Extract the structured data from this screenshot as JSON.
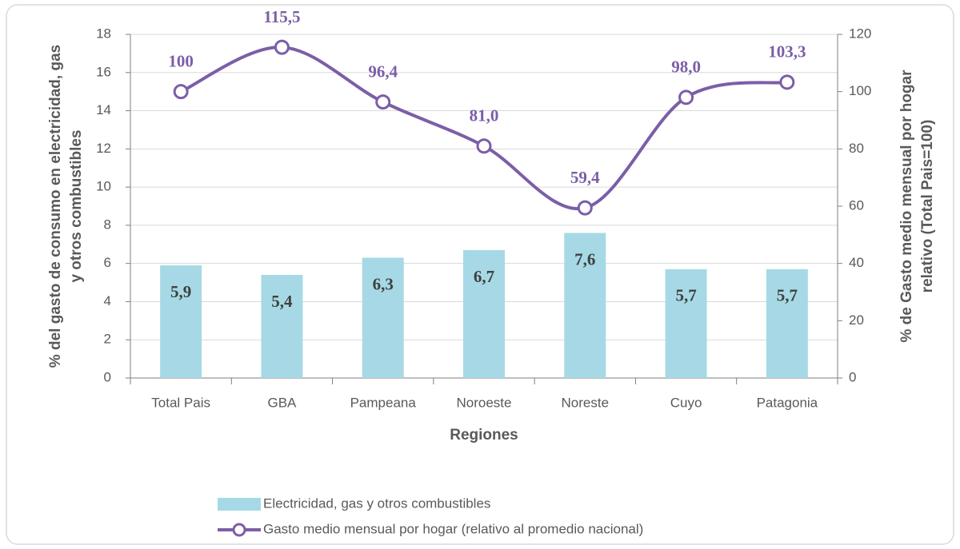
{
  "chart_data": {
    "type": "combo",
    "categories": [
      "Total Pais",
      "GBA",
      "Pampeana",
      "Noroeste",
      "Noreste",
      "Cuyo",
      "Patagonia"
    ],
    "series": [
      {
        "name": "Electricidad, gas y otros combustibles",
        "type": "bar",
        "color": "#a6d9e5",
        "values": [
          5.9,
          5.4,
          6.3,
          6.7,
          7.6,
          5.7,
          5.7
        ],
        "value_labels": [
          "5,9",
          "5,4",
          "6,3",
          "6,7",
          "7,6",
          "5,7",
          "5,7"
        ]
      },
      {
        "name": "Gasto medio mensual por hogar (relativo al promedio nacional)",
        "type": "line",
        "axis": "y2",
        "color": "#7b5ea7",
        "values": [
          100,
          115.5,
          96.4,
          81.0,
          59.4,
          98.0,
          103.3
        ],
        "value_labels": [
          "100",
          "115,5",
          "96,4",
          "81,0",
          "59,4",
          "98,0",
          "103,3"
        ]
      }
    ],
    "x_label": "Regiones",
    "y_label": "% del gasto de consumo en electricidad, gas y otros combustibles",
    "y2_label": "% de Gasto medio mensual por hogar relativo (Total Pais=100)",
    "ylim": [
      0,
      18
    ],
    "yticks": [
      0,
      2,
      4,
      6,
      8,
      10,
      12,
      14,
      16,
      18
    ],
    "y2lim": [
      0,
      120
    ],
    "y2ticks": [
      0,
      20,
      40,
      60,
      80,
      100,
      120
    ],
    "grid": true
  }
}
